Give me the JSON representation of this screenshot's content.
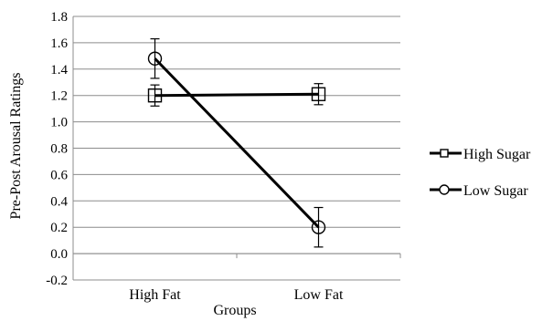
{
  "chart_data": {
    "type": "line",
    "title": "",
    "xlabel": "Groups",
    "ylabel": "Pre-Post Arousal Ratings",
    "categories": [
      "High Fat",
      "Low Fat"
    ],
    "ylim": [
      -0.2,
      1.8
    ],
    "ytick_step": 0.2,
    "grid": "horizontal",
    "legend": "right",
    "series": [
      {
        "name": "High Sugar",
        "marker": "square",
        "values": [
          1.2,
          1.21
        ],
        "error": [
          0.08,
          0.08
        ],
        "color": "#000000"
      },
      {
        "name": "Low Sugar",
        "marker": "circle",
        "values": [
          1.48,
          0.2
        ],
        "error": [
          0.15,
          0.15
        ],
        "color": "#000000"
      }
    ]
  }
}
